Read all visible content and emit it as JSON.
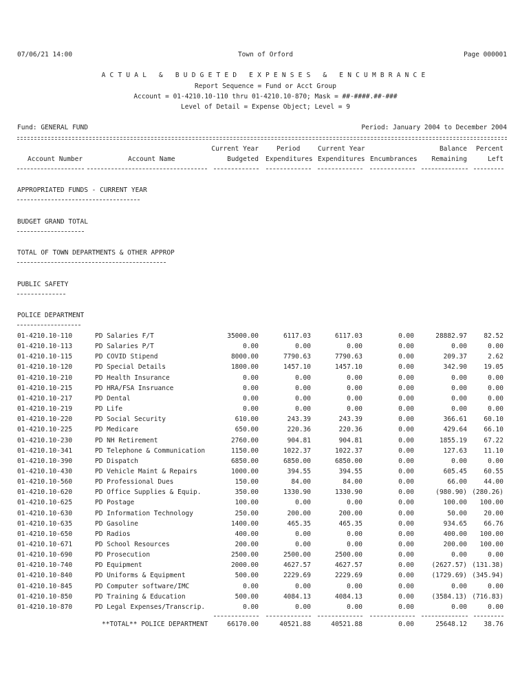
{
  "header": {
    "datetime": "07/06/21 14:00",
    "org": "Town of Orford",
    "page": "Page 000001",
    "title": "ACTUAL & BUDGETED EXPENSES & ENCUMBRANCE",
    "sequence": "Report Sequence = Fund or Acct Group",
    "account_range": "Account = 01-4210.10-110 thru 01-4210.10-870; Mask = ##-####.##-###",
    "detail": "Level of Detail = Expense Object; Level = 9",
    "fund": "Fund: GENERAL FUND",
    "period": "Period: January 2004 to December 2004"
  },
  "columns": {
    "account_number": "Account Number",
    "account_name": "Account Name",
    "budgeted_1": "Current Year",
    "budgeted_2": "Budgeted",
    "period_1": "Period",
    "period_2": "Expenditures",
    "current_1": "Current Year",
    "current_2": "Expenditures",
    "encumbrances": "Encumbrances",
    "balance_1": "Balance",
    "balance_2": "Remaining",
    "percent_1": "Percent",
    "percent_2": "Left"
  },
  "sections": [
    "APPROPRIATED FUNDS - CURRENT YEAR",
    "BUDGET GRAND TOTAL",
    "TOTAL OF TOWN DEPARTMENTS & OTHER APPROP",
    "PUBLIC SAFETY",
    "POLICE DEPARTMENT"
  ],
  "rows": [
    [
      "01-4210.10-110",
      "PD Salaries F/T",
      "35000.00",
      "6117.03",
      "6117.03",
      "0.00",
      "28882.97",
      "82.52"
    ],
    [
      "01-4210.10-113",
      "PD Salaries P/T",
      "0.00",
      "0.00",
      "0.00",
      "0.00",
      "0.00",
      "0.00"
    ],
    [
      "01-4210.10-115",
      "PD COVID Stipend",
      "8000.00",
      "7790.63",
      "7790.63",
      "0.00",
      "209.37",
      "2.62"
    ],
    [
      "01-4210.10-120",
      "PD Special Details",
      "1800.00",
      "1457.10",
      "1457.10",
      "0.00",
      "342.90",
      "19.05"
    ],
    [
      "01-4210.10-210",
      "PD Health Insurance",
      "0.00",
      "0.00",
      "0.00",
      "0.00",
      "0.00",
      "0.00"
    ],
    [
      "01-4210.10-215",
      "PD HRA/FSA Insruance",
      "0.00",
      "0.00",
      "0.00",
      "0.00",
      "0.00",
      "0.00"
    ],
    [
      "01-4210.10-217",
      "PD Dental",
      "0.00",
      "0.00",
      "0.00",
      "0.00",
      "0.00",
      "0.00"
    ],
    [
      "01-4210.10-219",
      "PD Life",
      "0.00",
      "0.00",
      "0.00",
      "0.00",
      "0.00",
      "0.00"
    ],
    [
      "01-4210.10-220",
      "PD Social Security",
      "610.00",
      "243.39",
      "243.39",
      "0.00",
      "366.61",
      "60.10"
    ],
    [
      "01-4210.10-225",
      "PD Medicare",
      "650.00",
      "220.36",
      "220.36",
      "0.00",
      "429.64",
      "66.10"
    ],
    [
      "01-4210.10-230",
      "PD NH Retirement",
      "2760.00",
      "904.81",
      "904.81",
      "0.00",
      "1855.19",
      "67.22"
    ],
    [
      "01-4210.10-341",
      "PD Telephone & Communication",
      "1150.00",
      "1022.37",
      "1022.37",
      "0.00",
      "127.63",
      "11.10"
    ],
    [
      "01-4210.10-390",
      "PD Dispatch",
      "6850.00",
      "6850.00",
      "6850.00",
      "0.00",
      "0.00",
      "0.00"
    ],
    [
      "01-4210.10-430",
      "PD Vehicle Maint & Repairs",
      "1000.00",
      "394.55",
      "394.55",
      "0.00",
      "605.45",
      "60.55"
    ],
    [
      "01-4210.10-560",
      "PD Professional Dues",
      "150.00",
      "84.00",
      "84.00",
      "0.00",
      "66.00",
      "44.00"
    ],
    [
      "01-4210.10-620",
      "PD Office Supplies & Equip.",
      "350.00",
      "1330.90",
      "1330.90",
      "0.00",
      "(980.90)",
      "(280.26)"
    ],
    [
      "01-4210.10-625",
      "PD Postage",
      "100.00",
      "0.00",
      "0.00",
      "0.00",
      "100.00",
      "100.00"
    ],
    [
      "01-4210.10-630",
      "PD Information Technology",
      "250.00",
      "200.00",
      "200.00",
      "0.00",
      "50.00",
      "20.00"
    ],
    [
      "01-4210.10-635",
      "PD Gasoline",
      "1400.00",
      "465.35",
      "465.35",
      "0.00",
      "934.65",
      "66.76"
    ],
    [
      "01-4210.10-650",
      "PD Radios",
      "400.00",
      "0.00",
      "0.00",
      "0.00",
      "400.00",
      "100.00"
    ],
    [
      "01-4210.10-671",
      "PD School Resources",
      "200.00",
      "0.00",
      "0.00",
      "0.00",
      "200.00",
      "100.00"
    ],
    [
      "01-4210.10-690",
      "PD Prosecution",
      "2500.00",
      "2500.00",
      "2500.00",
      "0.00",
      "0.00",
      "0.00"
    ],
    [
      "01-4210.10-740",
      "PD Equipment",
      "2000.00",
      "4627.57",
      "4627.57",
      "0.00",
      "(2627.57)",
      "(131.38)"
    ],
    [
      "01-4210.10-840",
      "PD Uniforms & Equipment",
      "500.00",
      "2229.69",
      "2229.69",
      "0.00",
      "(1729.69)",
      "(345.94)"
    ],
    [
      "01-4210.10-845",
      "PD Computer software/IMC",
      "0.00",
      "0.00",
      "0.00",
      "0.00",
      "0.00",
      "0.00"
    ],
    [
      "01-4210.10-850",
      "PD Training & Education",
      "500.00",
      "4084.13",
      "4084.13",
      "0.00",
      "(3584.13)",
      "(716.83)"
    ],
    [
      "01-4210.10-870",
      "PD Legal Expenses/Transcrip.",
      "0.00",
      "0.00",
      "0.00",
      "0.00",
      "0.00",
      "0.00"
    ]
  ],
  "total": {
    "label": "**TOTAL**  POLICE DEPARTMENT",
    "values": [
      "66170.00",
      "40521.88",
      "40521.88",
      "0.00",
      "25648.12",
      "38.76"
    ]
  }
}
